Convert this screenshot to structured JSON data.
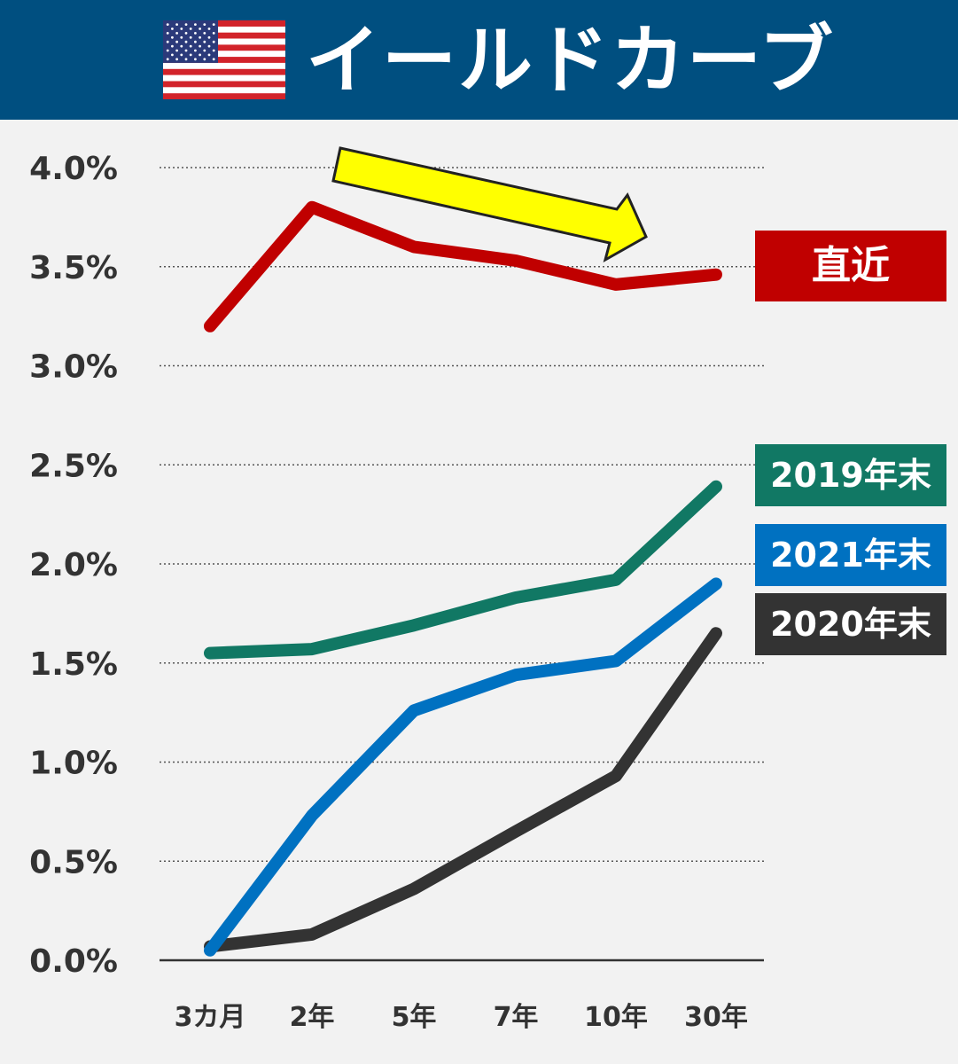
{
  "header": {
    "title": "イールドカーブ",
    "flag_icon": "us-flag-icon"
  },
  "colors": {
    "header_bg": "#004f80",
    "recent": "#c00000",
    "y2019": "#117864",
    "y2021": "#0071c1",
    "y2020": "#333333",
    "arrow": "#ffff00"
  },
  "chart_data": {
    "type": "line",
    "title": "イールドカーブ",
    "categories": [
      "3カ月",
      "2年",
      "5年",
      "7年",
      "10年",
      "30年"
    ],
    "y_ticks": [
      "0.0%",
      "0.5%",
      "1.0%",
      "1.5%",
      "2.0%",
      "2.5%",
      "3.0%",
      "3.5%",
      "4.0%"
    ],
    "ylim": [
      0,
      4.0
    ],
    "grid": "dotted horizontal",
    "legend": "right, labels next to line ends",
    "annotations": [
      "yellow arrow pointing down-right over the recent curve"
    ],
    "series": [
      {
        "name": "直近",
        "color": "#c00000",
        "values": [
          3.2,
          3.8,
          3.6,
          3.53,
          3.41,
          3.46
        ]
      },
      {
        "name": "2019年末",
        "color": "#117864",
        "values": [
          1.55,
          1.57,
          1.69,
          1.83,
          1.92,
          2.39
        ]
      },
      {
        "name": "2021年末",
        "color": "#0071c1",
        "values": [
          0.05,
          0.73,
          1.26,
          1.44,
          1.51,
          1.9
        ]
      },
      {
        "name": "2020年末",
        "color": "#333333",
        "values": [
          0.07,
          0.13,
          0.36,
          0.65,
          0.93,
          1.65
        ]
      }
    ]
  }
}
